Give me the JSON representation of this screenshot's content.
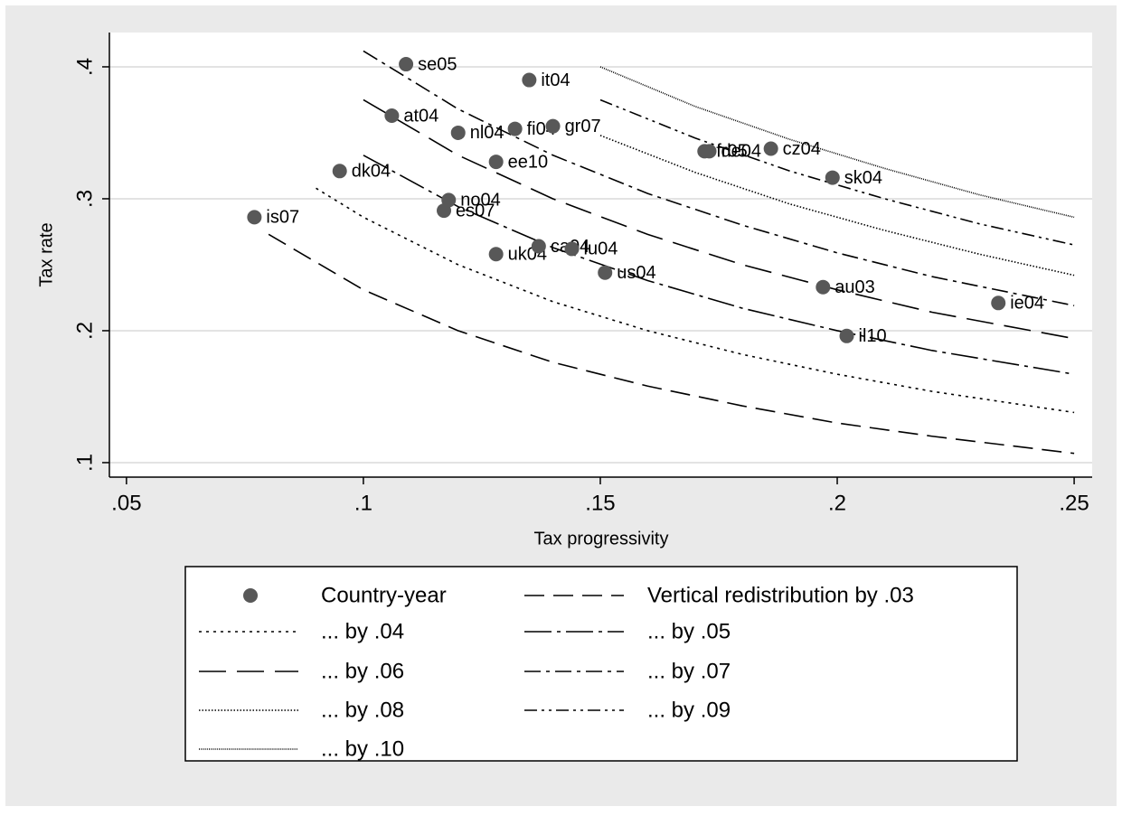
{
  "chart_data": {
    "type": "scatter",
    "x_label": "Tax progressivity",
    "y_label": "Tax rate",
    "xlim": [
      0.0464,
      0.2538
    ],
    "ylim": [
      0.089,
      0.426
    ],
    "xticks": [
      {
        "value": 0.05,
        "label": ".05"
      },
      {
        "value": 0.1,
        "label": ".1"
      },
      {
        "value": 0.15,
        "label": ".15"
      },
      {
        "value": 0.2,
        "label": ".2"
      },
      {
        "value": 0.25,
        "label": ".25"
      }
    ],
    "yticks": [
      {
        "value": 0.1,
        "label": ".1"
      },
      {
        "value": 0.2,
        "label": ".2"
      },
      {
        "value": 0.3,
        "label": ".3"
      },
      {
        "value": 0.4,
        "label": ".4"
      }
    ],
    "grid": true,
    "series": [
      {
        "name": "Country-year",
        "kind": "scatter",
        "color": "#585858",
        "point_labels": [
          "is07",
          "dk04",
          "at04",
          "se05",
          "nl04",
          "no04",
          "es07",
          "ee10",
          "uk04",
          "fi04",
          "it04",
          "gr07",
          "ca04",
          "lu04",
          "us04",
          "fr05",
          "de04",
          "cz04",
          "au03",
          "sk04",
          "il10",
          "ie04"
        ],
        "x": [
          0.077,
          0.095,
          0.106,
          0.109,
          0.12,
          0.118,
          0.117,
          0.128,
          0.128,
          0.132,
          0.135,
          0.14,
          0.137,
          0.144,
          0.151,
          0.172,
          0.173,
          0.186,
          0.197,
          0.199,
          0.202,
          0.234
        ],
        "values": [
          0.286,
          0.321,
          0.363,
          0.402,
          0.35,
          0.299,
          0.291,
          0.328,
          0.258,
          0.353,
          0.39,
          0.355,
          0.264,
          0.262,
          0.244,
          0.336,
          0.336,
          0.338,
          0.233,
          0.316,
          0.196,
          0.221
        ]
      },
      {
        "name": "Vertical redistribution by .03",
        "kind": "line",
        "color": "#000000",
        "dash": "22,10",
        "x": [
          0.08,
          0.1,
          0.12,
          0.14,
          0.16,
          0.18,
          0.2,
          0.22,
          0.25
        ],
        "values": [
          0.273,
          0.231,
          0.2,
          0.176,
          0.158,
          0.143,
          0.13,
          0.12,
          0.107
        ]
      },
      {
        "name": "... by .04",
        "kind": "line",
        "color": "#000000",
        "dash": "3,5",
        "x": [
          0.09,
          0.1,
          0.12,
          0.14,
          0.16,
          0.18,
          0.2,
          0.22,
          0.25
        ],
        "values": [
          0.308,
          0.286,
          0.25,
          0.222,
          0.2,
          0.182,
          0.167,
          0.154,
          0.138
        ]
      },
      {
        "name": "... by .05",
        "kind": "line",
        "color": "#000000",
        "dash": "30,6,4,6",
        "x": [
          0.1,
          0.12,
          0.14,
          0.16,
          0.18,
          0.2,
          0.22,
          0.25
        ],
        "values": [
          0.333,
          0.294,
          0.263,
          0.238,
          0.217,
          0.2,
          0.185,
          0.167
        ]
      },
      {
        "name": "... by .06",
        "kind": "line",
        "color": "#000000",
        "dash": "30,12",
        "x": [
          0.1,
          0.12,
          0.14,
          0.16,
          0.18,
          0.2,
          0.22,
          0.25
        ],
        "values": [
          0.375,
          0.333,
          0.3,
          0.273,
          0.25,
          0.231,
          0.214,
          0.194
        ]
      },
      {
        "name": "... by .07",
        "kind": "line",
        "color": "#000000",
        "dash": "18,6,4,6",
        "x": [
          0.1,
          0.12,
          0.14,
          0.16,
          0.18,
          0.2,
          0.22,
          0.25
        ],
        "values": [
          0.412,
          0.368,
          0.333,
          0.304,
          0.28,
          0.259,
          0.241,
          0.219
        ]
      },
      {
        "name": "... by .08",
        "kind": "line",
        "color": "#000000",
        "dash": "1.5,2",
        "x": [
          0.15,
          0.17,
          0.19,
          0.21,
          0.23,
          0.25
        ],
        "values": [
          0.348,
          0.32,
          0.296,
          0.276,
          0.258,
          0.242
        ]
      },
      {
        "name": "... by .09",
        "kind": "line",
        "color": "#000000",
        "dash": "14,5,3,5,3,5",
        "x": [
          0.15,
          0.17,
          0.19,
          0.21,
          0.23,
          0.25
        ],
        "values": [
          0.375,
          0.346,
          0.321,
          0.3,
          0.281,
          0.265
        ]
      },
      {
        "name": "... by .10",
        "kind": "line",
        "color": "#000000",
        "dash": "1,1.2",
        "x": [
          0.15,
          0.17,
          0.19,
          0.21,
          0.23,
          0.25
        ],
        "values": [
          0.4,
          0.37,
          0.345,
          0.323,
          0.303,
          0.286
        ]
      }
    ]
  }
}
